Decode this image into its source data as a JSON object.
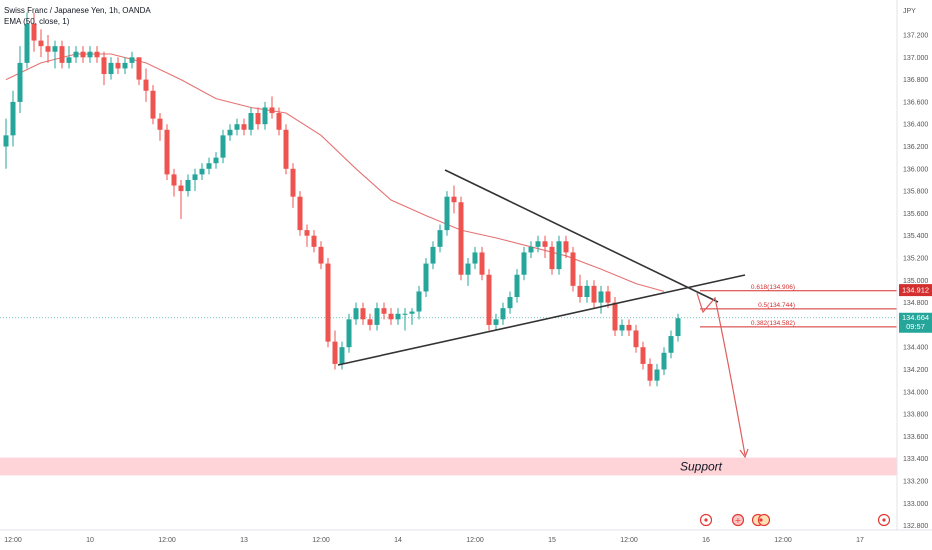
{
  "header": {
    "symbol_line": "Swiss Franc / Japanese Yen, 1h, OANDA",
    "indicator_line": "EMA (50, close, 1)"
  },
  "axis": {
    "currency": "JPY"
  },
  "chart_data": {
    "type": "candlestick",
    "x_tick_labels": [
      "12:00",
      "10",
      "12:00",
      "13",
      "12:00",
      "14",
      "12:00",
      "15",
      "12:00",
      "16",
      "12:00",
      "17"
    ],
    "y_tick_labels": [
      "137.200",
      "137.000",
      "136.800",
      "136.600",
      "136.400",
      "136.200",
      "136.000",
      "135.800",
      "135.600",
      "135.400",
      "135.200",
      "135.000",
      "134.800",
      "134.600",
      "134.400",
      "134.200",
      "134.000",
      "133.800",
      "133.600",
      "133.400",
      "133.200",
      "133.000",
      "132.800"
    ],
    "ylim": [
      132.75,
      137.45
    ],
    "current_price": {
      "price": "134.664",
      "countdown": "09:57"
    },
    "marked_price": "134.912",
    "fib_levels": [
      {
        "label": "0.618(134.906)",
        "value": 134.906
      },
      {
        "label": "0.5(134.744)",
        "value": 134.744
      },
      {
        "label": "0.382(134.582)",
        "value": 134.582
      }
    ],
    "support_zone": {
      "label": "Support",
      "from": 133.25,
      "to": 133.41
    },
    "colors": {
      "up": "#26a69a",
      "down": "#ef5350",
      "ema": "#e57373",
      "marker": "#d32f2f",
      "trendline": "#333333"
    },
    "ohlc": [
      [
        136.2,
        136.45,
        136.0,
        136.3
      ],
      [
        136.3,
        136.7,
        136.2,
        136.6
      ],
      [
        136.6,
        137.1,
        136.5,
        136.95
      ],
      [
        136.95,
        137.4,
        136.9,
        137.3
      ],
      [
        137.3,
        137.4,
        137.05,
        137.15
      ],
      [
        137.15,
        137.25,
        137.0,
        137.1
      ],
      [
        137.1,
        137.2,
        136.95,
        137.05
      ],
      [
        137.05,
        137.15,
        136.9,
        137.1
      ],
      [
        137.1,
        137.15,
        136.9,
        136.95
      ],
      [
        136.95,
        137.1,
        136.9,
        137.0
      ],
      [
        137.0,
        137.1,
        136.95,
        137.05
      ],
      [
        137.05,
        137.1,
        136.95,
        137.0
      ],
      [
        137.0,
        137.1,
        136.95,
        137.05
      ],
      [
        137.05,
        137.1,
        136.95,
        137.0
      ],
      [
        137.0,
        137.05,
        136.75,
        136.85
      ],
      [
        136.85,
        137.0,
        136.8,
        136.95
      ],
      [
        136.95,
        137.0,
        136.85,
        136.9
      ],
      [
        136.9,
        137.0,
        136.85,
        136.95
      ],
      [
        136.95,
        137.05,
        136.9,
        137.0
      ],
      [
        137.0,
        137.0,
        136.75,
        136.8
      ],
      [
        136.8,
        136.9,
        136.6,
        136.7
      ],
      [
        136.7,
        136.75,
        136.4,
        136.45
      ],
      [
        136.45,
        136.5,
        136.25,
        136.35
      ],
      [
        136.35,
        136.4,
        135.9,
        135.95
      ],
      [
        135.95,
        136.0,
        135.75,
        135.85
      ],
      [
        135.85,
        135.9,
        135.55,
        135.8
      ],
      [
        135.8,
        135.95,
        135.75,
        135.9
      ],
      [
        135.9,
        136.0,
        135.8,
        135.95
      ],
      [
        135.95,
        136.05,
        135.9,
        136.0
      ],
      [
        136.0,
        136.1,
        135.95,
        136.05
      ],
      [
        136.05,
        136.15,
        136.0,
        136.1
      ],
      [
        136.1,
        136.35,
        136.05,
        136.3
      ],
      [
        136.3,
        136.4,
        136.25,
        136.35
      ],
      [
        136.35,
        136.45,
        136.3,
        136.4
      ],
      [
        136.4,
        136.45,
        136.3,
        136.35
      ],
      [
        136.35,
        136.55,
        136.3,
        136.5
      ],
      [
        136.5,
        136.55,
        136.35,
        136.4
      ],
      [
        136.4,
        136.6,
        136.35,
        136.55
      ],
      [
        136.55,
        136.65,
        136.45,
        136.5
      ],
      [
        136.5,
        136.55,
        136.3,
        136.35
      ],
      [
        136.35,
        136.4,
        135.95,
        136.0
      ],
      [
        136.0,
        136.05,
        135.65,
        135.75
      ],
      [
        135.75,
        135.8,
        135.4,
        135.45
      ],
      [
        135.45,
        135.5,
        135.3,
        135.4
      ],
      [
        135.4,
        135.45,
        135.25,
        135.3
      ],
      [
        135.3,
        135.35,
        135.1,
        135.15
      ],
      [
        135.15,
        135.2,
        134.4,
        134.45
      ],
      [
        134.45,
        134.55,
        134.2,
        134.25
      ],
      [
        134.25,
        134.45,
        134.2,
        134.4
      ],
      [
        134.4,
        134.7,
        134.35,
        134.65
      ],
      [
        134.65,
        134.8,
        134.6,
        134.75
      ],
      [
        134.75,
        134.8,
        134.6,
        134.65
      ],
      [
        134.65,
        134.7,
        134.55,
        134.6
      ],
      [
        134.6,
        134.8,
        134.55,
        134.75
      ],
      [
        134.75,
        134.8,
        134.65,
        134.7
      ],
      [
        134.7,
        134.75,
        134.6,
        134.65
      ],
      [
        134.65,
        134.75,
        134.6,
        134.7
      ],
      [
        134.7,
        134.75,
        134.55,
        134.7
      ],
      [
        134.7,
        134.75,
        134.6,
        134.72
      ],
      [
        134.72,
        134.95,
        134.65,
        134.9
      ],
      [
        134.9,
        135.2,
        134.85,
        135.15
      ],
      [
        135.15,
        135.35,
        135.1,
        135.3
      ],
      [
        135.3,
        135.5,
        135.25,
        135.45
      ],
      [
        135.45,
        135.8,
        135.4,
        135.75
      ],
      [
        135.75,
        135.85,
        135.6,
        135.7
      ],
      [
        135.7,
        135.75,
        135.0,
        135.05
      ],
      [
        135.05,
        135.2,
        134.95,
        135.15
      ],
      [
        135.15,
        135.3,
        135.1,
        135.25
      ],
      [
        135.25,
        135.3,
        135.0,
        135.05
      ],
      [
        135.05,
        135.1,
        134.55,
        134.6
      ],
      [
        134.6,
        134.7,
        134.55,
        134.65
      ],
      [
        134.65,
        134.8,
        134.6,
        134.75
      ],
      [
        134.75,
        134.9,
        134.7,
        134.85
      ],
      [
        134.85,
        135.1,
        134.8,
        135.05
      ],
      [
        135.05,
        135.3,
        135.0,
        135.25
      ],
      [
        135.25,
        135.35,
        135.2,
        135.3
      ],
      [
        135.3,
        135.4,
        135.25,
        135.35
      ],
      [
        135.35,
        135.4,
        135.2,
        135.3
      ],
      [
        135.3,
        135.35,
        135.05,
        135.1
      ],
      [
        135.1,
        135.4,
        135.05,
        135.35
      ],
      [
        135.35,
        135.4,
        135.2,
        135.25
      ],
      [
        135.25,
        135.3,
        134.9,
        134.95
      ],
      [
        134.95,
        135.05,
        134.8,
        134.85
      ],
      [
        134.85,
        135.0,
        134.8,
        134.95
      ],
      [
        134.95,
        135.0,
        134.75,
        134.8
      ],
      [
        134.8,
        134.95,
        134.7,
        134.9
      ],
      [
        134.9,
        134.95,
        134.75,
        134.8
      ],
      [
        134.8,
        134.85,
        134.5,
        134.55
      ],
      [
        134.55,
        134.65,
        134.5,
        134.6
      ],
      [
        134.6,
        134.65,
        134.5,
        134.55
      ],
      [
        134.55,
        134.6,
        134.35,
        134.4
      ],
      [
        134.4,
        134.45,
        134.2,
        134.25
      ],
      [
        134.25,
        134.3,
        134.05,
        134.1
      ],
      [
        134.1,
        134.25,
        134.05,
        134.2
      ],
      [
        134.2,
        134.4,
        134.15,
        134.35
      ],
      [
        134.35,
        134.55,
        134.3,
        134.5
      ],
      [
        134.5,
        134.7,
        134.45,
        134.66
      ]
    ],
    "ema": [
      [
        0,
        136.8
      ],
      [
        5,
        136.95
      ],
      [
        10,
        137.03
      ],
      [
        15,
        137.03
      ],
      [
        20,
        136.95
      ],
      [
        25,
        136.8
      ],
      [
        30,
        136.63
      ],
      [
        35,
        136.55
      ],
      [
        40,
        136.5
      ],
      [
        45,
        136.3
      ],
      [
        50,
        136.0
      ],
      [
        55,
        135.72
      ],
      [
        60,
        135.58
      ],
      [
        65,
        135.45
      ],
      [
        70,
        135.38
      ],
      [
        75,
        135.3
      ],
      [
        80,
        135.22
      ],
      [
        85,
        135.1
      ],
      [
        90,
        134.97
      ],
      [
        94,
        134.9
      ]
    ]
  }
}
